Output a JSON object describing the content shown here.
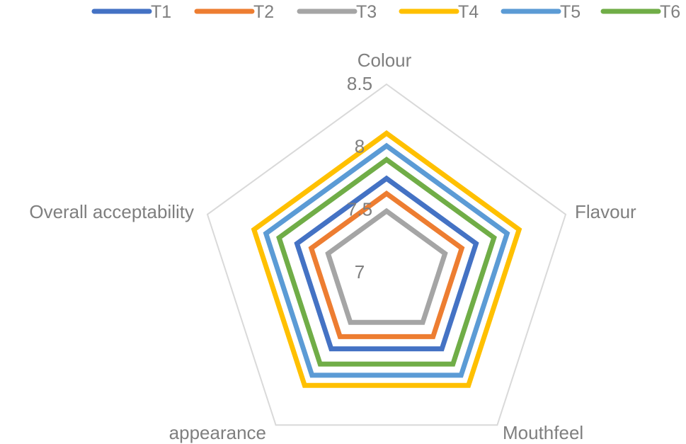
{
  "chart_data": {
    "type": "radar",
    "axes": [
      "Colour",
      "Flavour",
      "Mouthfeel",
      "appearance",
      "Overall acceptability"
    ],
    "rlim": [
      7,
      8.5
    ],
    "ticks": [
      "7",
      "7.5",
      "8",
      "8.5"
    ],
    "grid": true,
    "legend_position": "top",
    "series": [
      {
        "name": "T1",
        "color": "#4472c4",
        "values": [
          7.75,
          7.75,
          7.75,
          7.75,
          7.75
        ]
      },
      {
        "name": "T2",
        "color": "#ed7d31",
        "values": [
          7.63,
          7.63,
          7.63,
          7.63,
          7.63
        ]
      },
      {
        "name": "T3",
        "color": "#a5a5a5",
        "values": [
          7.49,
          7.49,
          7.49,
          7.49,
          7.49
        ]
      },
      {
        "name": "T4",
        "color": "#ffc000",
        "values": [
          8.11,
          8.11,
          8.11,
          8.11,
          8.11
        ]
      },
      {
        "name": "T5",
        "color": "#5b9bd5",
        "values": [
          8.01,
          8.01,
          8.01,
          8.01,
          8.01
        ]
      },
      {
        "name": "T6",
        "color": "#70ad47",
        "values": [
          7.9,
          7.9,
          7.9,
          7.9,
          7.9
        ]
      }
    ]
  }
}
